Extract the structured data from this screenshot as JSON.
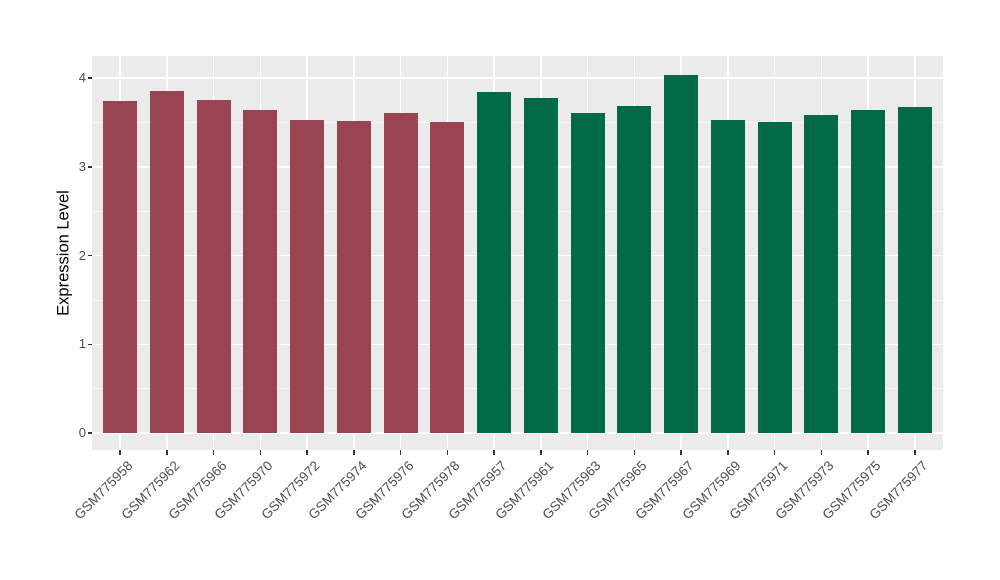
{
  "figure": {
    "background": "#FFFFFF",
    "panel_background": "#EBEBEB",
    "grid_color": "#FFFFFF",
    "tick_color": "#333333",
    "axis_text_color": "#4D4D4D",
    "axis_title_color": "#000000"
  },
  "chart_data": {
    "type": "bar",
    "title": "",
    "xlabel": "",
    "ylabel": "Expression Level",
    "categories": [
      "GSM775958",
      "GSM775962",
      "GSM775966",
      "GSM775970",
      "GSM775972",
      "GSM775974",
      "GSM775976",
      "GSM775978",
      "GSM775957",
      "GSM775961",
      "GSM775963",
      "GSM775965",
      "GSM775967",
      "GSM775969",
      "GSM775971",
      "GSM775973",
      "GSM775975",
      "GSM775977"
    ],
    "values": [
      3.74,
      3.86,
      3.75,
      3.64,
      3.53,
      3.52,
      3.61,
      3.51,
      3.84,
      3.78,
      3.61,
      3.69,
      4.04,
      3.53,
      3.51,
      3.59,
      3.64,
      3.67
    ],
    "group_index": [
      0,
      0,
      0,
      0,
      0,
      0,
      0,
      0,
      1,
      1,
      1,
      1,
      1,
      1,
      1,
      1,
      1,
      1
    ],
    "group_colors": [
      "#9A4351",
      "#026A48"
    ],
    "yticks": [
      0,
      1,
      2,
      3,
      4
    ],
    "minor_yticks": [
      0.5,
      1.5,
      2.5,
      3.5
    ],
    "ylim": [
      -0.19,
      4.25
    ],
    "grid": "on",
    "legend": "none",
    "x_tick_label_angle": 45
  }
}
